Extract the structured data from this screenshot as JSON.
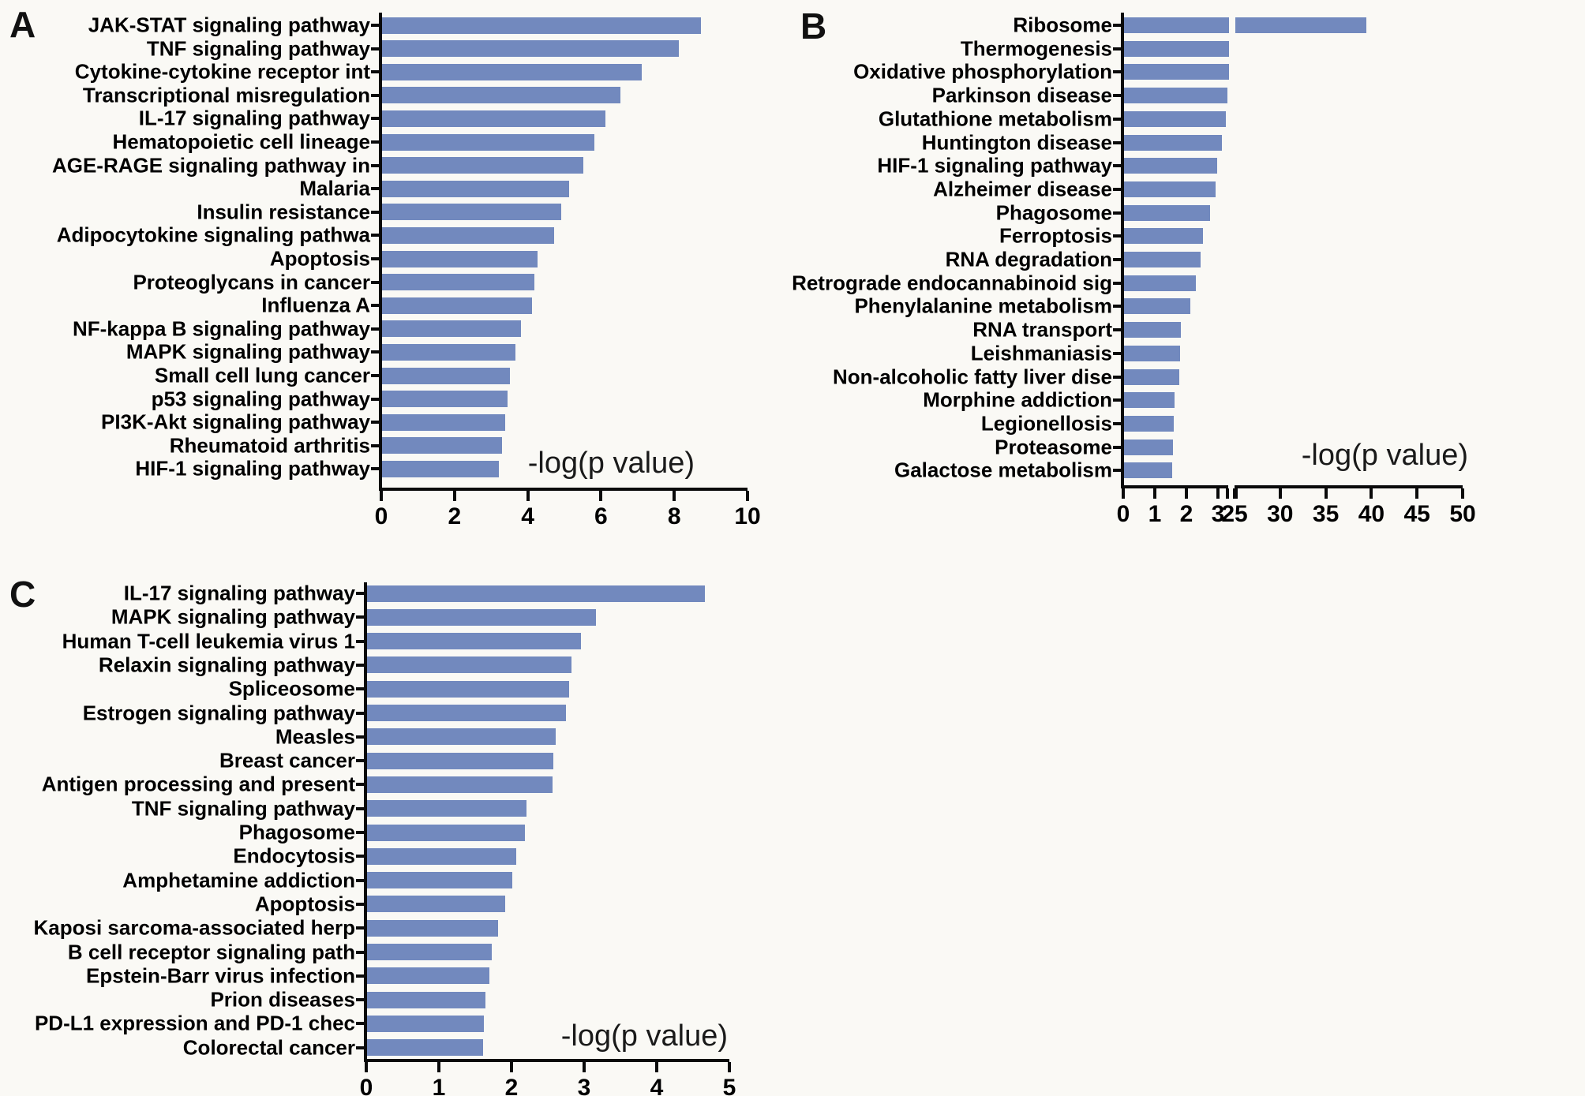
{
  "figure": {
    "background": "#faf9f5",
    "bar_color": "#7289be",
    "axis_color": "#0a0a0a"
  },
  "chart_data": [
    {
      "panel": "A",
      "type": "bar",
      "orientation": "horizontal",
      "xlabel": "-log(p value)",
      "xlim": [
        0,
        10
      ],
      "xticks": [
        0,
        2,
        4,
        6,
        8,
        10
      ],
      "grid": false,
      "categories": [
        "JAK-STAT signaling pathway",
        "TNF signaling pathway",
        "Cytokine-cytokine receptor int",
        "Transcriptional misregulation",
        "IL-17 signaling pathway",
        "Hematopoietic cell lineage",
        "AGE-RAGE signaling pathway in",
        "Malaria",
        "Insulin resistance",
        "Adipocytokine signaling pathwa",
        "Apoptosis",
        "Proteoglycans in cancer",
        "Influenza A",
        "NF-kappa B signaling pathway",
        "MAPK signaling pathway",
        "Small cell lung cancer",
        "p53 signaling pathway",
        "PI3K-Akt signaling pathway",
        "Rheumatoid arthritis",
        "HIF-1 signaling pathway"
      ],
      "values": [
        8.7,
        8.1,
        7.1,
        6.5,
        6.1,
        5.8,
        5.5,
        5.1,
        4.9,
        4.7,
        4.25,
        4.15,
        4.1,
        3.8,
        3.65,
        3.5,
        3.42,
        3.36,
        3.28,
        3.2
      ]
    },
    {
      "panel": "B",
      "type": "bar",
      "orientation": "horizontal",
      "xlabel": "-log(p value)",
      "axis_break": {
        "segment1": [
          0,
          3
        ],
        "segment2": [
          25,
          50
        ]
      },
      "xticks_segment1": [
        0,
        1,
        2,
        3
      ],
      "xticks_segment2": [
        25,
        30,
        35,
        40,
        45,
        50
      ],
      "grid": false,
      "categories": [
        "Ribosome",
        "Thermogenesis",
        "Oxidative phosphorylation",
        "Parkinson disease",
        "Glutathione metabolism",
        "Huntington disease",
        "HIF-1 signaling pathway",
        "Alzheimer disease",
        "Phagosome",
        "Ferroptosis",
        "RNA degradation",
        "Retrograde endocannabinoid sig",
        "Phenylalanine metabolism",
        "RNA transport",
        "Leishmaniasis",
        "Non-alcoholic fatty liver dise",
        "Morphine addiction",
        "Legionellosis",
        "Proteasome",
        "Galactose metabolism"
      ],
      "values": [
        39.4,
        3.4,
        3.32,
        3.28,
        3.22,
        3.1,
        2.95,
        2.9,
        2.72,
        2.5,
        2.43,
        2.27,
        2.1,
        1.81,
        1.78,
        1.76,
        1.6,
        1.57,
        1.54,
        1.53
      ]
    },
    {
      "panel": "C",
      "type": "bar",
      "orientation": "horizontal",
      "xlabel": "-log(p value)",
      "xlim": [
        0,
        5
      ],
      "xticks": [
        0,
        1,
        2,
        3,
        4,
        5
      ],
      "grid": false,
      "categories": [
        "IL-17 signaling pathway",
        "MAPK signaling pathway",
        "Human T-cell leukemia virus 1",
        "Relaxin signaling pathway",
        "Spliceosome",
        "Estrogen signaling pathway",
        "Measles",
        "Breast cancer",
        "Antigen processing and present",
        "TNF signaling pathway",
        "Phagosome",
        "Endocytosis",
        "Amphetamine addiction",
        "Apoptosis",
        "Kaposi sarcoma-associated herp",
        "B cell receptor signaling path",
        "Epstein-Barr virus infection",
        "Prion diseases",
        "PD-L1 expression and PD-1 chec",
        "Colorectal cancer"
      ],
      "values": [
        4.65,
        3.15,
        2.95,
        2.82,
        2.78,
        2.74,
        2.6,
        2.57,
        2.55,
        2.2,
        2.17,
        2.05,
        2.0,
        1.9,
        1.8,
        1.72,
        1.68,
        1.63,
        1.61,
        1.6
      ]
    }
  ]
}
